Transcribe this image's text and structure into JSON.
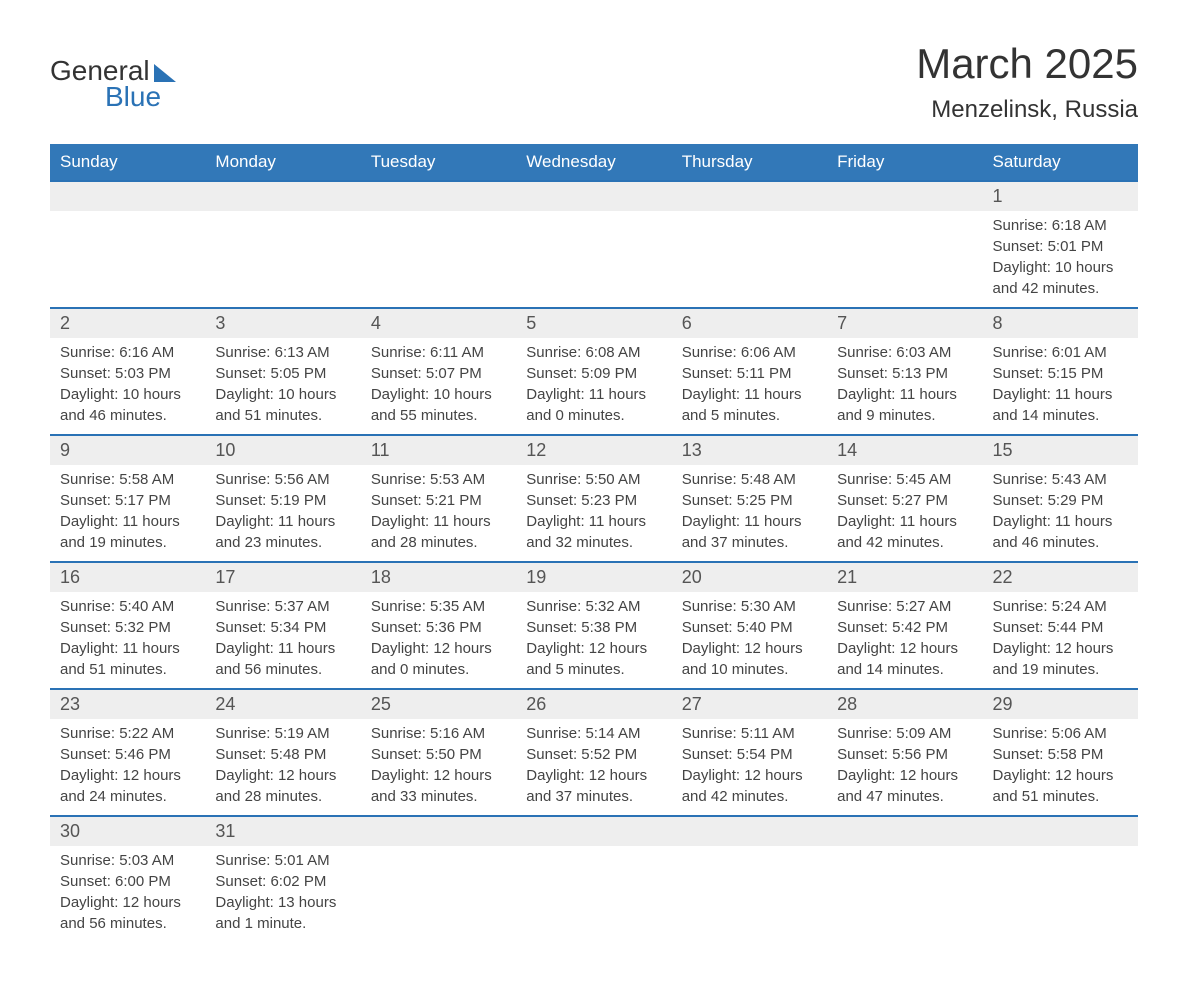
{
  "logo": {
    "line1": "General",
    "line2": "Blue"
  },
  "title": "March 2025",
  "location": "Menzelinsk, Russia",
  "colors": {
    "header_bg": "#3278b8",
    "header_text": "#ffffff",
    "row_divider": "#2a72b5",
    "daynum_bg": "#eeeeee",
    "text": "#444444",
    "logo_dark": "#333333",
    "logo_blue": "#2a72b5"
  },
  "weekdays": [
    "Sunday",
    "Monday",
    "Tuesday",
    "Wednesday",
    "Thursday",
    "Friday",
    "Saturday"
  ],
  "weeks": [
    [
      null,
      null,
      null,
      null,
      null,
      null,
      {
        "day": "1",
        "sunrise": "Sunrise: 6:18 AM",
        "sunset": "Sunset: 5:01 PM",
        "daylight": "Daylight: 10 hours and 42 minutes."
      }
    ],
    [
      {
        "day": "2",
        "sunrise": "Sunrise: 6:16 AM",
        "sunset": "Sunset: 5:03 PM",
        "daylight": "Daylight: 10 hours and 46 minutes."
      },
      {
        "day": "3",
        "sunrise": "Sunrise: 6:13 AM",
        "sunset": "Sunset: 5:05 PM",
        "daylight": "Daylight: 10 hours and 51 minutes."
      },
      {
        "day": "4",
        "sunrise": "Sunrise: 6:11 AM",
        "sunset": "Sunset: 5:07 PM",
        "daylight": "Daylight: 10 hours and 55 minutes."
      },
      {
        "day": "5",
        "sunrise": "Sunrise: 6:08 AM",
        "sunset": "Sunset: 5:09 PM",
        "daylight": "Daylight: 11 hours and 0 minutes."
      },
      {
        "day": "6",
        "sunrise": "Sunrise: 6:06 AM",
        "sunset": "Sunset: 5:11 PM",
        "daylight": "Daylight: 11 hours and 5 minutes."
      },
      {
        "day": "7",
        "sunrise": "Sunrise: 6:03 AM",
        "sunset": "Sunset: 5:13 PM",
        "daylight": "Daylight: 11 hours and 9 minutes."
      },
      {
        "day": "8",
        "sunrise": "Sunrise: 6:01 AM",
        "sunset": "Sunset: 5:15 PM",
        "daylight": "Daylight: 11 hours and 14 minutes."
      }
    ],
    [
      {
        "day": "9",
        "sunrise": "Sunrise: 5:58 AM",
        "sunset": "Sunset: 5:17 PM",
        "daylight": "Daylight: 11 hours and 19 minutes."
      },
      {
        "day": "10",
        "sunrise": "Sunrise: 5:56 AM",
        "sunset": "Sunset: 5:19 PM",
        "daylight": "Daylight: 11 hours and 23 minutes."
      },
      {
        "day": "11",
        "sunrise": "Sunrise: 5:53 AM",
        "sunset": "Sunset: 5:21 PM",
        "daylight": "Daylight: 11 hours and 28 minutes."
      },
      {
        "day": "12",
        "sunrise": "Sunrise: 5:50 AM",
        "sunset": "Sunset: 5:23 PM",
        "daylight": "Daylight: 11 hours and 32 minutes."
      },
      {
        "day": "13",
        "sunrise": "Sunrise: 5:48 AM",
        "sunset": "Sunset: 5:25 PM",
        "daylight": "Daylight: 11 hours and 37 minutes."
      },
      {
        "day": "14",
        "sunrise": "Sunrise: 5:45 AM",
        "sunset": "Sunset: 5:27 PM",
        "daylight": "Daylight: 11 hours and 42 minutes."
      },
      {
        "day": "15",
        "sunrise": "Sunrise: 5:43 AM",
        "sunset": "Sunset: 5:29 PM",
        "daylight": "Daylight: 11 hours and 46 minutes."
      }
    ],
    [
      {
        "day": "16",
        "sunrise": "Sunrise: 5:40 AM",
        "sunset": "Sunset: 5:32 PM",
        "daylight": "Daylight: 11 hours and 51 minutes."
      },
      {
        "day": "17",
        "sunrise": "Sunrise: 5:37 AM",
        "sunset": "Sunset: 5:34 PM",
        "daylight": "Daylight: 11 hours and 56 minutes."
      },
      {
        "day": "18",
        "sunrise": "Sunrise: 5:35 AM",
        "sunset": "Sunset: 5:36 PM",
        "daylight": "Daylight: 12 hours and 0 minutes."
      },
      {
        "day": "19",
        "sunrise": "Sunrise: 5:32 AM",
        "sunset": "Sunset: 5:38 PM",
        "daylight": "Daylight: 12 hours and 5 minutes."
      },
      {
        "day": "20",
        "sunrise": "Sunrise: 5:30 AM",
        "sunset": "Sunset: 5:40 PM",
        "daylight": "Daylight: 12 hours and 10 minutes."
      },
      {
        "day": "21",
        "sunrise": "Sunrise: 5:27 AM",
        "sunset": "Sunset: 5:42 PM",
        "daylight": "Daylight: 12 hours and 14 minutes."
      },
      {
        "day": "22",
        "sunrise": "Sunrise: 5:24 AM",
        "sunset": "Sunset: 5:44 PM",
        "daylight": "Daylight: 12 hours and 19 minutes."
      }
    ],
    [
      {
        "day": "23",
        "sunrise": "Sunrise: 5:22 AM",
        "sunset": "Sunset: 5:46 PM",
        "daylight": "Daylight: 12 hours and 24 minutes."
      },
      {
        "day": "24",
        "sunrise": "Sunrise: 5:19 AM",
        "sunset": "Sunset: 5:48 PM",
        "daylight": "Daylight: 12 hours and 28 minutes."
      },
      {
        "day": "25",
        "sunrise": "Sunrise: 5:16 AM",
        "sunset": "Sunset: 5:50 PM",
        "daylight": "Daylight: 12 hours and 33 minutes."
      },
      {
        "day": "26",
        "sunrise": "Sunrise: 5:14 AM",
        "sunset": "Sunset: 5:52 PM",
        "daylight": "Daylight: 12 hours and 37 minutes."
      },
      {
        "day": "27",
        "sunrise": "Sunrise: 5:11 AM",
        "sunset": "Sunset: 5:54 PM",
        "daylight": "Daylight: 12 hours and 42 minutes."
      },
      {
        "day": "28",
        "sunrise": "Sunrise: 5:09 AM",
        "sunset": "Sunset: 5:56 PM",
        "daylight": "Daylight: 12 hours and 47 minutes."
      },
      {
        "day": "29",
        "sunrise": "Sunrise: 5:06 AM",
        "sunset": "Sunset: 5:58 PM",
        "daylight": "Daylight: 12 hours and 51 minutes."
      }
    ],
    [
      {
        "day": "30",
        "sunrise": "Sunrise: 5:03 AM",
        "sunset": "Sunset: 6:00 PM",
        "daylight": "Daylight: 12 hours and 56 minutes."
      },
      {
        "day": "31",
        "sunrise": "Sunrise: 5:01 AM",
        "sunset": "Sunset: 6:02 PM",
        "daylight": "Daylight: 13 hours and 1 minute."
      },
      null,
      null,
      null,
      null,
      null
    ]
  ]
}
